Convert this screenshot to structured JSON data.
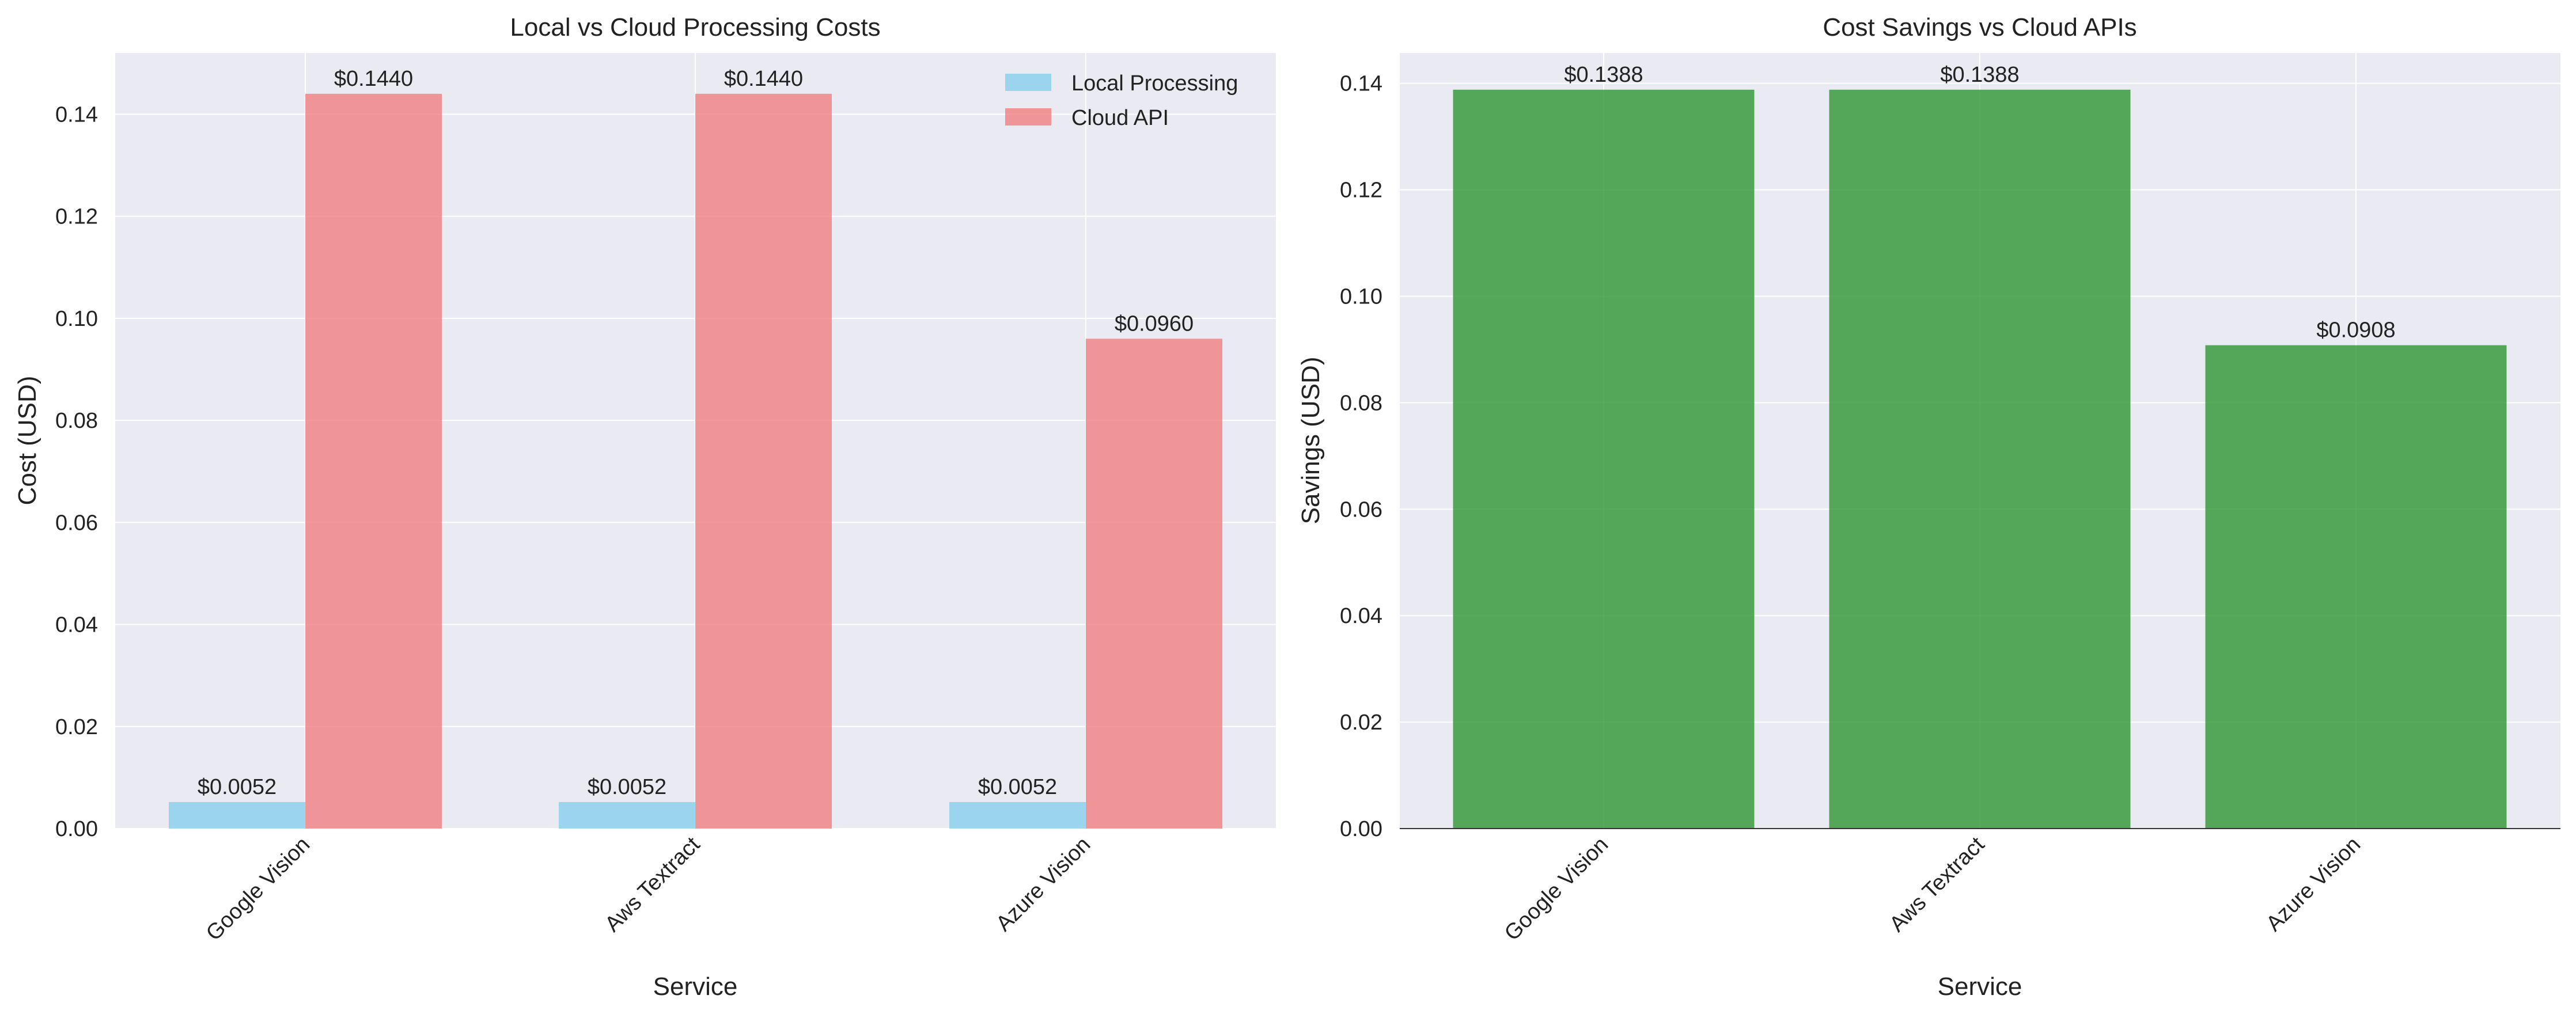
{
  "chart_data": [
    {
      "type": "bar",
      "title": "Local vs Cloud Processing Costs",
      "xlabel": "Service",
      "ylabel": "Cost (USD)",
      "categories": [
        "Google Vision",
        "Aws Textract",
        "Azure Vision"
      ],
      "series": [
        {
          "name": "Local Processing",
          "values": [
            0.0052,
            0.0052,
            0.0052
          ],
          "color": "#87ceeb",
          "labels": [
            "$0.0052",
            "$0.0052",
            "$0.0052"
          ]
        },
        {
          "name": "Cloud API",
          "values": [
            0.144,
            0.144,
            0.096
          ],
          "color": "#f08080",
          "labels": [
            "$0.1440",
            "$0.1440",
            "$0.0960"
          ]
        }
      ],
      "ylim": [
        0,
        0.152
      ],
      "yticks": [
        0.0,
        0.02,
        0.04,
        0.06,
        0.08,
        0.1,
        0.12,
        0.14
      ],
      "ytick_labels": [
        "0.00",
        "0.02",
        "0.04",
        "0.06",
        "0.08",
        "0.10",
        "0.12",
        "0.14"
      ],
      "grid": true,
      "legend": "top-right"
    },
    {
      "type": "bar",
      "title": "Cost Savings vs Cloud APIs",
      "xlabel": "Service",
      "ylabel": "Savings (USD)",
      "categories": [
        "Google Vision",
        "Aws Textract",
        "Azure Vision"
      ],
      "series": [
        {
          "values": [
            0.1388,
            0.1388,
            0.0908
          ],
          "color": "#2e9631",
          "labels": [
            "$0.1388",
            "$0.1388",
            "$0.0908"
          ]
        }
      ],
      "ylim": [
        0,
        0.1457
      ],
      "yticks": [
        0.0,
        0.02,
        0.04,
        0.06,
        0.08,
        0.1,
        0.12,
        0.14
      ],
      "ytick_labels": [
        "0.00",
        "0.02",
        "0.04",
        "0.06",
        "0.08",
        "0.10",
        "0.12",
        "0.14"
      ],
      "grid": true
    }
  ]
}
